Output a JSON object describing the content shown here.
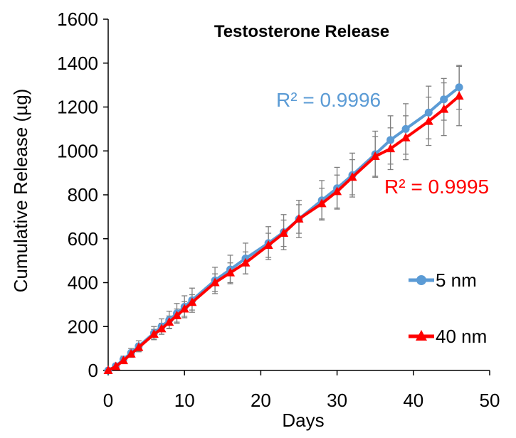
{
  "chart_data": {
    "type": "line",
    "title": "Testosterone Release",
    "xlabel": "Days",
    "ylabel": "Cumulative Release (µg)",
    "xlim": [
      0,
      50
    ],
    "ylim": [
      0,
      1600
    ],
    "x_ticks": [
      0,
      10,
      20,
      30,
      40,
      50
    ],
    "y_ticks": [
      0,
      200,
      400,
      600,
      800,
      1000,
      1200,
      1400,
      1600
    ],
    "grid": false,
    "legend_position": "right",
    "series": [
      {
        "name": "5 nm",
        "color": "#5B9BD5",
        "marker": "circle",
        "x": [
          0,
          1,
          2,
          3,
          4,
          6,
          7,
          8,
          9,
          10,
          11,
          14,
          16,
          18,
          21,
          23,
          25,
          28,
          30,
          32,
          35,
          37,
          39,
          42,
          44,
          46
        ],
        "y": [
          0,
          20,
          50,
          80,
          110,
          170,
          200,
          230,
          260,
          290,
          320,
          410,
          460,
          510,
          580,
          630,
          690,
          775,
          830,
          890,
          985,
          1050,
          1100,
          1175,
          1235,
          1290
        ],
        "error": [
          5,
          10,
          15,
          20,
          25,
          30,
          35,
          40,
          45,
          50,
          55,
          60,
          65,
          70,
          75,
          80,
          85,
          90,
          95,
          100,
          105,
          110,
          115,
          120,
          95,
          100
        ],
        "annotation": "R² = 0.9996"
      },
      {
        "name": "40 nm",
        "color": "#FF0000",
        "marker": "triangle",
        "x": [
          0,
          1,
          2,
          3,
          4,
          6,
          7,
          8,
          9,
          10,
          11,
          14,
          16,
          18,
          21,
          23,
          25,
          28,
          30,
          32,
          35,
          37,
          39,
          42,
          44,
          46
        ],
        "y": [
          0,
          18,
          45,
          75,
          105,
          165,
          190,
          220,
          250,
          280,
          310,
          400,
          445,
          490,
          570,
          625,
          690,
          760,
          815,
          880,
          975,
          1010,
          1060,
          1135,
          1190,
          1250
        ],
        "error": [
          5,
          8,
          10,
          15,
          18,
          22,
          25,
          28,
          30,
          33,
          35,
          40,
          45,
          50,
          55,
          60,
          65,
          70,
          75,
          80,
          90,
          95,
          100,
          110,
          120,
          135
        ],
        "annotation": "R² = 0.9995"
      }
    ]
  }
}
